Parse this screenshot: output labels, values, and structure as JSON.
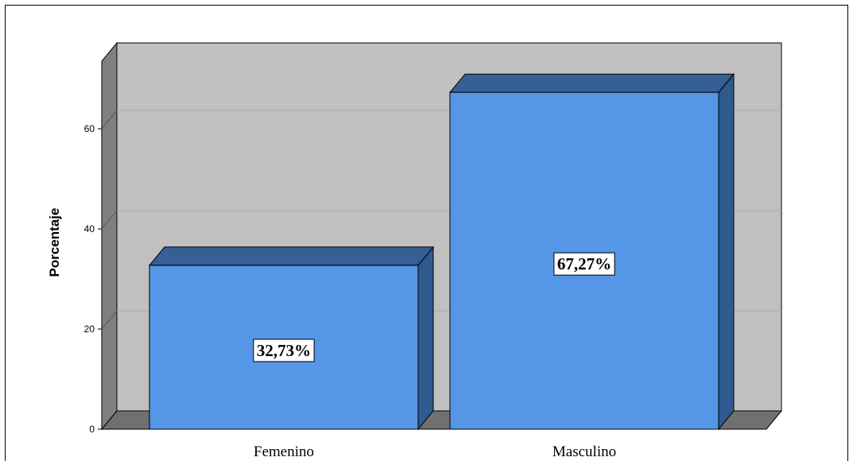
{
  "chart_data": {
    "type": "bar",
    "style": "3d",
    "categories": [
      "Femenino",
      "Masculino"
    ],
    "values": [
      32.73,
      67.27
    ],
    "data_labels": [
      "32,73%",
      "67,27%"
    ],
    "title": "",
    "xlabel": "",
    "ylabel": "Porcentaje",
    "ylim": [
      0,
      72
    ],
    "yticks": [
      0,
      20,
      40,
      60
    ],
    "ytick_labels": [
      "0",
      "20",
      "40",
      "60"
    ],
    "grid": true,
    "legend": "none",
    "colors": {
      "bar_front": "#5596E6",
      "bar_side": "#2F5A8E",
      "bar_top": "#355F95",
      "back_wall": "#C0C0C0",
      "side_wall": "#808080",
      "floor": "#707070",
      "gridline": "#A8A8A8"
    }
  }
}
